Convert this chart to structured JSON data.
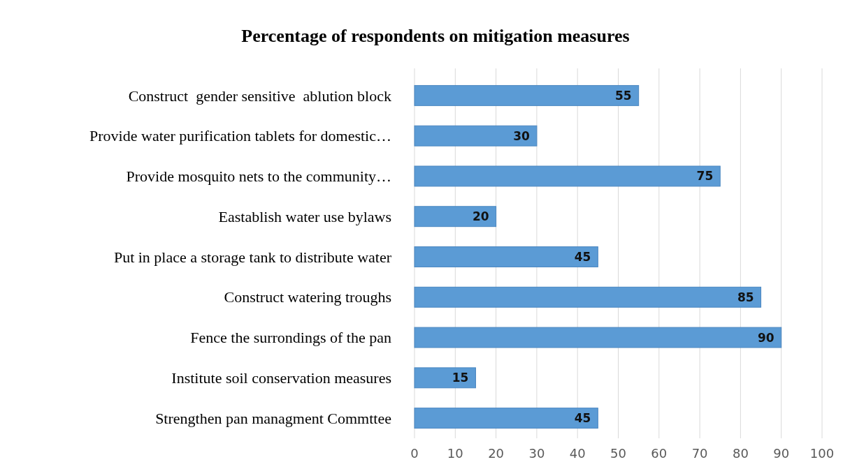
{
  "chart_data": {
    "type": "bar",
    "orientation": "horizontal",
    "title": "Percentage of respondents on mitigation measures",
    "categories": [
      "Construct  gender sensitive  ablution block",
      "Provide water purification tablets for domestic…",
      "Provide mosquito nets to the community…",
      "Eastablish water use bylaws",
      "Put in place a storage tank to distribute water",
      "Construct watering troughs",
      "Fence the surrondings of the pan",
      "Institute soil conservation measures",
      "Strengthen pan managment Commttee"
    ],
    "values": [
      55,
      30,
      75,
      20,
      45,
      85,
      90,
      15,
      45
    ],
    "color": "#5b9bd5",
    "xlim": [
      0,
      100
    ],
    "xticks": [
      0,
      10,
      20,
      30,
      40,
      50,
      60,
      70,
      80,
      90,
      100
    ],
    "grid": "x",
    "data_labels": true
  }
}
